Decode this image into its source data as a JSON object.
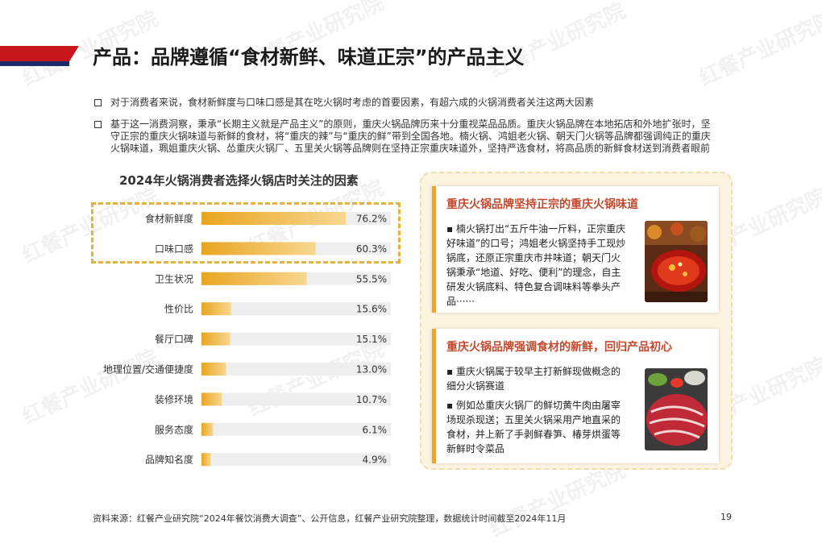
{
  "brand": {
    "watermark": "红餐产业研究院"
  },
  "header": {
    "title": "产品：品牌遵循“食材新鲜、味道正宗”的产品主义"
  },
  "bullets": [
    "对于消费者来说，食材新鲜度与口味口感是其在吃火锅时考虑的首要因素，有超六成的火锅消费者关注这两大因素",
    "基于这一消费洞察，秉承“长期主义就是产品主义”的原则，重庆火锅品牌历来十分重视菜品品质。重庆火锅品牌在本地拓店和外地扩张时，坚守正宗的重庆火锅味道与新鲜的食材，将“重庆的辣”与“重庆的鲜”带到全国各地。楠火锅、鸿姐老火锅、朝天门火锅等品牌都强调纯正的重庆火锅味道，珮姐重庆火锅、怂重庆火锅厂、五里关火锅等品牌则在坚持正宗重庆味道外，坚持严选食材，将高品质的新鲜食材送到消费者眼前"
  ],
  "chart_data": {
    "type": "bar",
    "orientation": "horizontal",
    "title": "2024年火锅消费者选择火锅店时关注的因素",
    "categories": [
      "食材新鲜度",
      "口味口感",
      "卫生状况",
      "性价比",
      "餐厅口碑",
      "地理位置/交通便捷度",
      "装修环境",
      "服务态度",
      "品牌知名度"
    ],
    "values": [
      76.2,
      60.3,
      55.5,
      15.6,
      15.1,
      13.0,
      10.7,
      6.1,
      4.9
    ],
    "value_labels": [
      "76.2%",
      "60.3%",
      "55.5%",
      "15.6%",
      "15.1%",
      "13.0%",
      "10.7%",
      "6.1%",
      "4.9%"
    ],
    "xlim": [
      0,
      100
    ],
    "highlighted_categories": [
      "食材新鲜度",
      "口味口感"
    ],
    "colors": {
      "bar_start": "#e9a520",
      "bar_end": "#f7d78f",
      "track": "#eeeeee"
    }
  },
  "cards": [
    {
      "title": "重庆火锅品牌坚持正宗的重庆火锅味道",
      "paragraphs": [
        "▪ 楠火锅打出“五斤牛油一斤料，正宗重庆好味道”的口号；鸿姐老火锅坚持手工现炒锅底，还原正宗重庆市井味道；朝天门火锅秉承“地道、好吃、便利”的理念，自主研发火锅底料、特色复合调味料等拳头产品······"
      ]
    },
    {
      "title": "重庆火锅品牌强调食材的新鲜，回归产品初心",
      "paragraphs": [
        "▪ 重庆火锅属于较早主打新鲜现做概念的细分火锅赛道",
        "▪ 例如怂重庆火锅厂的鲜切黄牛肉由屠宰场现杀现送；五里关火锅采用产地直采的食材，并上新了手剥鲜春笋、椿芽烘蛋等新鲜时令菜品"
      ]
    }
  ],
  "footer": {
    "source": "资料来源：红餐产业研究院“2024年餐饮消费大调查”、公开信息，红餐产业研究院整理，数据统计时间截至2024年11月",
    "page": "19"
  },
  "colors": {
    "brand_red": "#c8161d",
    "brand_navy": "#1d2a6b",
    "accent_gold": "#e2a63a",
    "card_title": "#c4482c"
  }
}
